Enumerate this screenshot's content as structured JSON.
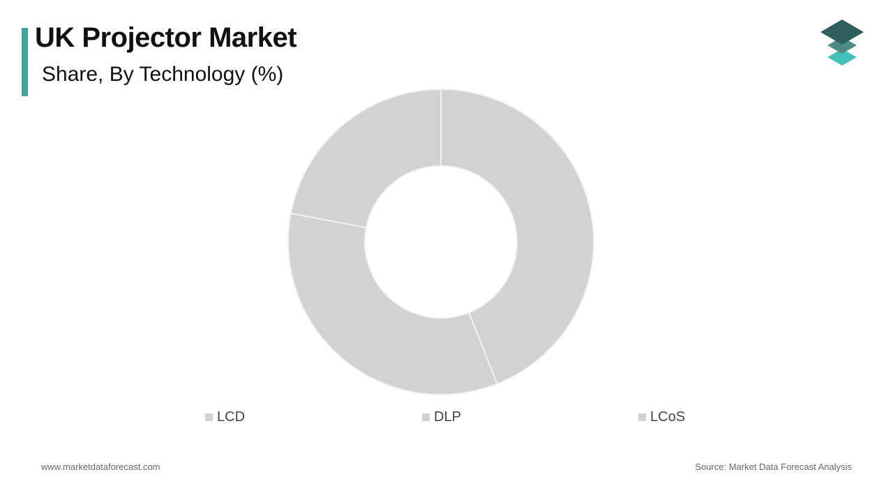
{
  "header": {
    "title": "UK Projector Market",
    "subtitle": "Share, By Technology (%)"
  },
  "logo": {
    "icon": "stacked-layers-logo-icon",
    "colors": [
      "#2e5f5a",
      "#4c8a83",
      "#46c1b8"
    ]
  },
  "chart_data": {
    "type": "pie",
    "style": "donut",
    "categories": [
      "LCD",
      "DLP",
      "LCoS"
    ],
    "values": [
      44,
      34,
      22
    ],
    "slice_color": "#d3d2d3",
    "separator_color": "#f2f2f2",
    "legend_position": "bottom"
  },
  "footer": {
    "website": "www.marketdataforecast.com",
    "source": "Source: Market Data Forecast Analysis"
  },
  "colors": {
    "accent": "#3aa6a0"
  }
}
